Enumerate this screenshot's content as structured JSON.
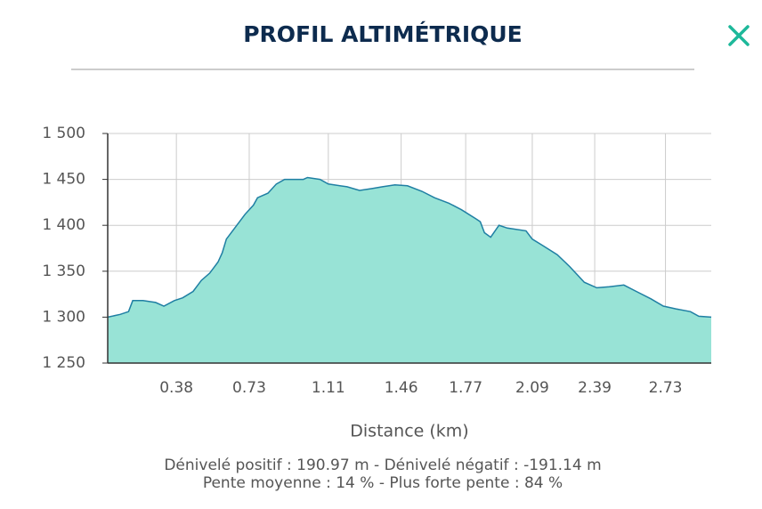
{
  "header": {
    "title": "PROFIL ALTIMÉTRIQUE"
  },
  "chart_data": {
    "type": "area",
    "x_label": "Distance (km)",
    "x": [
      0.05,
      0.11,
      0.15,
      0.17,
      0.22,
      0.28,
      0.32,
      0.37,
      0.41,
      0.46,
      0.5,
      0.54,
      0.58,
      0.6,
      0.62,
      0.67,
      0.71,
      0.75,
      0.77,
      0.82,
      0.86,
      0.9,
      0.99,
      1.01,
      1.07,
      1.11,
      1.2,
      1.26,
      1.32,
      1.37,
      1.43,
      1.49,
      1.56,
      1.62,
      1.69,
      1.75,
      1.82,
      1.84,
      1.86,
      1.89,
      1.93,
      1.97,
      2.06,
      2.09,
      2.14,
      2.21,
      2.27,
      2.34,
      2.4,
      2.46,
      2.53,
      2.59,
      2.66,
      2.72,
      2.78,
      2.85,
      2.89,
      2.95
    ],
    "values": [
      1300,
      1303,
      1306,
      1318,
      1318,
      1316,
      1312,
      1318,
      1321,
      1328,
      1340,
      1348,
      1360,
      1370,
      1385,
      1400,
      1412,
      1422,
      1430,
      1435,
      1445,
      1450,
      1450,
      1452,
      1450,
      1445,
      1442,
      1438,
      1440,
      1442,
      1444,
      1443,
      1437,
      1430,
      1424,
      1417,
      1407,
      1404,
      1392,
      1387,
      1400,
      1397,
      1394,
      1385,
      1378,
      1368,
      1355,
      1338,
      1332,
      1333,
      1335,
      1328,
      1320,
      1312,
      1309,
      1306,
      1301,
      1300
    ],
    "color": "#98e3d6",
    "line_color": "#1f7fa3",
    "xlim": [
      0.05,
      2.95
    ],
    "ylim": [
      1250,
      1500
    ],
    "xticks": [
      0.38,
      0.73,
      1.11,
      1.46,
      1.77,
      2.09,
      2.39,
      2.73
    ],
    "yticks": [
      {
        "value": 1250,
        "label": "1 250"
      },
      {
        "value": 1300,
        "label": "1 300"
      },
      {
        "value": 1350,
        "label": "1 350"
      },
      {
        "value": 1400,
        "label": "1 400"
      },
      {
        "value": 1450,
        "label": "1 450"
      },
      {
        "value": 1500,
        "label": "1 500"
      }
    ],
    "grid": true
  },
  "footer": {
    "line1": "Dénivelé positif : 190.97 m - Dénivelé négatif : -191.14 m",
    "line2": "Pente moyenne : 14 % - Plus forte pente : 84 %"
  }
}
